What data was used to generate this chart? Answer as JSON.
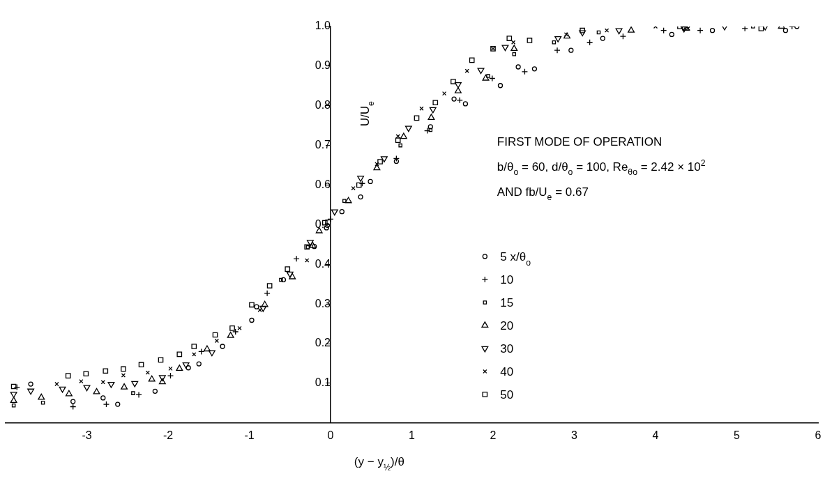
{
  "chart_data": {
    "type": "scatter",
    "xlabel": "(y − y$_{½}$)/θ",
    "ylabel": "U/U$_{e}$",
    "annotations": [
      "FIRST MODE OF OPERATION",
      "b/θ$_{o}$ = 60, d/θ$_{o}$ = 100, Re$_{θo}$ = 2.42 × 10$^{2}$",
      "AND fb/U$_{e}$ = 0.67"
    ],
    "xlim": [
      -4,
      6
    ],
    "xticks": [
      -3,
      -2,
      -1,
      0,
      1,
      2,
      3,
      4,
      5,
      6
    ],
    "ylim": [
      0,
      1
    ],
    "yticks": [
      0.1,
      0.2,
      0.3,
      0.4,
      0.5,
      0.6,
      0.7,
      0.8,
      0.9,
      {
        "value": 1,
        "label": "1.0"
      }
    ],
    "grid": false,
    "legend": "right",
    "series": [
      {
        "name": "5 x/θ$_{o}$",
        "color": "#000000",
        "marker": "circle",
        "x": [
          -3.69,
          -3.17,
          -2.8,
          -2.62,
          -2.16,
          -1.75,
          -1.62,
          -1.33,
          -0.97,
          -0.91,
          -0.58,
          -0.2,
          -0.05,
          0.14,
          0.37,
          0.49,
          0.81,
          1.23,
          1.52,
          1.66,
          2.09,
          2.31,
          2.51,
          2.96,
          3.35,
          4.2,
          4.7,
          5.6,
          5.74
        ],
        "values": [
          0.098,
          0.054,
          0.063,
          0.047,
          0.08,
          0.139,
          0.149,
          0.193,
          0.259,
          0.293,
          0.361,
          0.445,
          0.492,
          0.533,
          0.57,
          0.609,
          0.66,
          0.747,
          0.817,
          0.805,
          0.851,
          0.898,
          0.893,
          0.94,
          0.97,
          0.98,
          0.99,
          0.99,
          1.0
        ]
      },
      {
        "name": "10",
        "color": "#000000",
        "marker": "cross",
        "x": [
          -3.86,
          -3.17,
          -2.76,
          -2.36,
          -1.97,
          -1.59,
          -1.17,
          -0.78,
          -0.42,
          0.0,
          0.39,
          0.81,
          1.19,
          1.59,
          1.99,
          2.39,
          2.79,
          3.19,
          3.6,
          4.1,
          4.55,
          5.1,
          5.68
        ],
        "values": [
          0.09,
          0.041,
          0.047,
          0.071,
          0.119,
          0.18,
          0.23,
          0.327,
          0.414,
          0.514,
          0.604,
          0.667,
          0.737,
          0.814,
          0.869,
          0.886,
          0.94,
          0.96,
          0.975,
          0.99,
          0.99,
          0.995,
          1.0
        ]
      },
      {
        "name": "15",
        "color": "#000000",
        "marker": "square",
        "x": [
          -3.9,
          -3.54,
          -2.43,
          -0.61,
          -0.28,
          0.17,
          0.86,
          1.23,
          1.94,
          2.26,
          2.75,
          3.3,
          4.35,
          5.2
        ],
        "values": [
          0.044,
          0.051,
          0.075,
          0.361,
          0.443,
          0.56,
          0.7,
          0.739,
          0.875,
          0.93,
          0.96,
          0.985,
          0.995,
          1.0
        ]
      },
      {
        "name": "20",
        "color": "#000000",
        "marker": "triangle",
        "x": [
          -3.9,
          -3.56,
          -3.22,
          -2.88,
          -2.54,
          -2.2,
          -2.07,
          -1.86,
          -1.52,
          -1.23,
          -0.81,
          -0.47,
          -0.22,
          -0.14,
          0.22,
          0.57,
          0.9,
          1.24,
          1.57,
          1.91,
          2.26,
          2.91,
          3.7,
          4.38,
          5.55
        ],
        "values": [
          0.056,
          0.064,
          0.073,
          0.078,
          0.09,
          0.11,
          0.103,
          0.137,
          0.186,
          0.22,
          0.298,
          0.368,
          0.447,
          0.484,
          0.56,
          0.643,
          0.722,
          0.77,
          0.837,
          0.869,
          0.944,
          0.975,
          0.99,
          0.995,
          1.0
        ]
      },
      {
        "name": "30",
        "color": "#000000",
        "marker": "triangle-down",
        "x": [
          -3.9,
          -3.69,
          -3.3,
          -3.0,
          -2.7,
          -2.41,
          -2.07,
          -1.78,
          -1.46,
          -0.83,
          -0.5,
          -0.25,
          0.05,
          0.37,
          0.66,
          0.96,
          1.26,
          1.57,
          1.85,
          2.15,
          2.8,
          3.1,
          3.55,
          4.35,
          4.85,
          5.35
        ],
        "values": [
          0.073,
          0.081,
          0.086,
          0.09,
          0.098,
          0.1,
          0.115,
          0.147,
          0.178,
          0.29,
          0.376,
          0.456,
          0.533,
          0.618,
          0.667,
          0.744,
          0.791,
          0.854,
          0.89,
          0.948,
          0.97,
          0.985,
          0.99,
          0.995,
          1.0,
          1.0
        ]
      },
      {
        "name": "40",
        "color": "#000000",
        "marker": "x",
        "x": [
          -3.37,
          -3.07,
          -2.8,
          -2.55,
          -2.25,
          -1.97,
          -1.68,
          -1.4,
          -1.12,
          -0.87,
          -0.29,
          0.28,
          0.57,
          0.83,
          1.12,
          1.4,
          1.68,
          2.0,
          2.25,
          2.9,
          3.4,
          4.0,
          4.4
        ],
        "values": [
          0.098,
          0.105,
          0.103,
          0.12,
          0.127,
          0.137,
          0.173,
          0.207,
          0.239,
          0.285,
          0.41,
          0.592,
          0.653,
          0.723,
          0.793,
          0.831,
          0.888,
          0.944,
          0.96,
          0.98,
          0.99,
          1.0,
          0.995
        ]
      },
      {
        "name": "50",
        "color": "#000000",
        "marker": "square-large",
        "x": [
          -3.9,
          -3.23,
          -3.01,
          -2.77,
          -2.55,
          -2.33,
          -2.09,
          -1.86,
          -1.68,
          -1.42,
          -1.21,
          -0.97,
          -0.75,
          -0.53,
          -0.29,
          -0.07,
          0.35,
          0.61,
          0.83,
          1.06,
          1.29,
          1.51,
          1.74,
          2.0,
          2.2,
          2.45,
          3.1,
          4.3,
          5.3
        ],
        "values": [
          0.092,
          0.119,
          0.124,
          0.131,
          0.136,
          0.147,
          0.159,
          0.173,
          0.193,
          0.222,
          0.239,
          0.298,
          0.346,
          0.388,
          0.444,
          0.505,
          0.6,
          0.659,
          0.713,
          0.769,
          0.808,
          0.861,
          0.915,
          0.944,
          0.97,
          0.965,
          0.99,
          1.0,
          0.995
        ]
      }
    ]
  }
}
